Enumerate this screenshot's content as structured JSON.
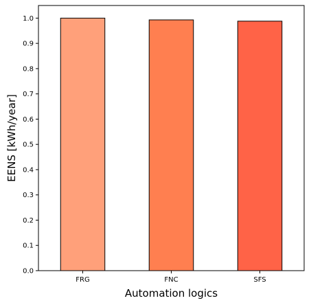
{
  "chart_data": {
    "type": "bar",
    "title": "",
    "xlabel": "Automation logics",
    "ylabel": "EENS [kWh/year]",
    "categories": [
      "FRG",
      "FNC",
      "SFS"
    ],
    "values": [
      1.0,
      0.993,
      0.988
    ],
    "ylim": [
      0,
      1.05
    ],
    "yticks": [
      0.0,
      0.1,
      0.2,
      0.3,
      0.4,
      0.5,
      0.6,
      0.7,
      0.8,
      0.9,
      1.0
    ],
    "ytick_labels": [
      "0.0",
      "0.1",
      "0.2",
      "0.3",
      "0.4",
      "0.5",
      "0.6",
      "0.7",
      "0.8",
      "0.9",
      "1.0"
    ],
    "bar_colors": [
      "#FFA07A",
      "#FF7F50",
      "#FF6347"
    ],
    "bar_edge_color": "#000000",
    "grid": false,
    "legend": "none"
  }
}
